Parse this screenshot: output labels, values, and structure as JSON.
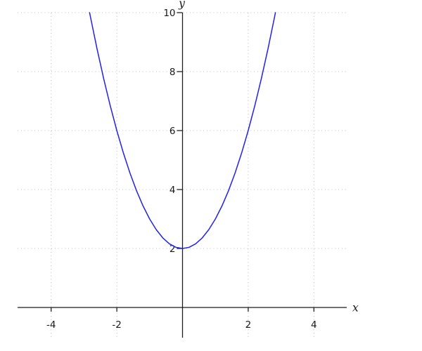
{
  "chart_data": {
    "type": "line",
    "title": "",
    "xlabel": "x",
    "ylabel": "y",
    "function": "y = x^2 + 2",
    "x_ticks": [
      -4,
      -2,
      2,
      4
    ],
    "y_ticks": [
      2,
      4,
      6,
      8,
      10
    ],
    "xlim": [
      -5,
      5
    ],
    "ylim": [
      -1,
      10
    ],
    "grid": "dotted",
    "legend": "none",
    "series": [
      {
        "name": "y = x^2 + 2",
        "points": [
          [
            -2.8284,
            10
          ],
          [
            -2.8,
            9.84
          ],
          [
            -2.6,
            8.76
          ],
          [
            -2.4,
            7.76
          ],
          [
            -2.2,
            6.84
          ],
          [
            -2,
            6
          ],
          [
            -1.8,
            5.24
          ],
          [
            -1.6,
            4.56
          ],
          [
            -1.4,
            3.96
          ],
          [
            -1.2,
            3.44
          ],
          [
            -1,
            3
          ],
          [
            -0.8,
            2.64
          ],
          [
            -0.6,
            2.36
          ],
          [
            -0.4,
            2.16
          ],
          [
            -0.2,
            2.04
          ],
          [
            0,
            2
          ],
          [
            0.2,
            2.04
          ],
          [
            0.4,
            2.16
          ],
          [
            0.6,
            2.36
          ],
          [
            0.8,
            2.64
          ],
          [
            1,
            3
          ],
          [
            1.2,
            3.44
          ],
          [
            1.4,
            3.96
          ],
          [
            1.6,
            4.56
          ],
          [
            1.8,
            5.24
          ],
          [
            2,
            6
          ],
          [
            2.2,
            6.84
          ],
          [
            2.4,
            7.76
          ],
          [
            2.6,
            8.76
          ],
          [
            2.8,
            9.84
          ],
          [
            2.8284,
            10
          ]
        ]
      }
    ]
  },
  "style": {
    "curve_color": "#2222ee",
    "grid_color": "#c8c8c8",
    "axis_color": "#1a1a1a",
    "tick_label_color": "#1a1a1a",
    "background_color": "#ffffff"
  }
}
